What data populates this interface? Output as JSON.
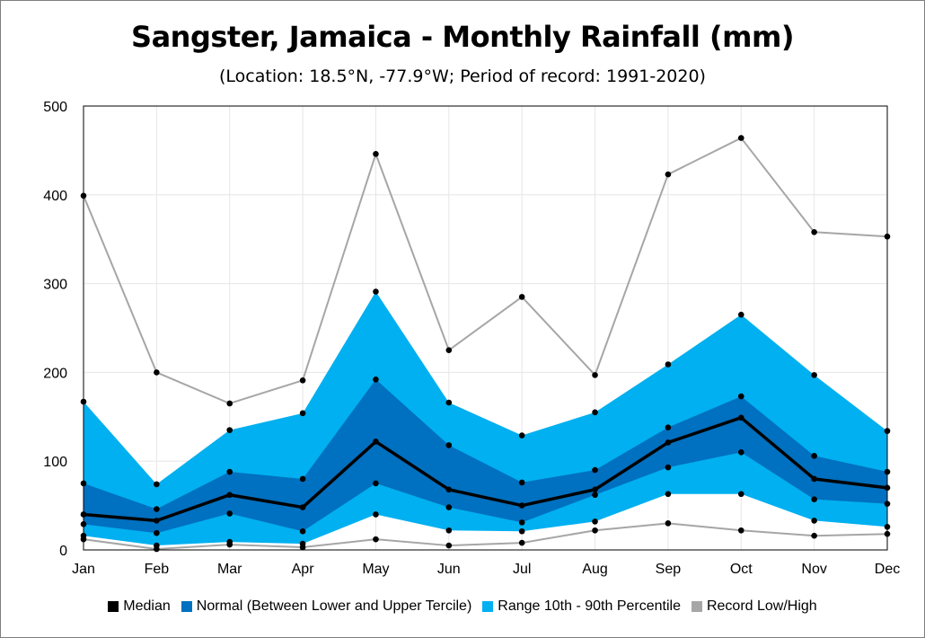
{
  "chart_data": {
    "type": "area",
    "title": "Sangster, Jamaica - Monthly Rainfall (mm)",
    "subtitle": "(Location: 18.5°N, -77.9°W; Period of record: 1991-2020)",
    "categories": [
      "Jan",
      "Feb",
      "Mar",
      "Apr",
      "May",
      "Jun",
      "Jul",
      "Aug",
      "Sep",
      "Oct",
      "Nov",
      "Dec"
    ],
    "ylim": [
      0,
      500
    ],
    "yticks": [
      0,
      100,
      200,
      300,
      400,
      500
    ],
    "grid": true,
    "legend_position": "bottom",
    "series": {
      "p90": [
        167,
        74,
        135,
        154,
        291,
        166,
        129,
        155,
        209,
        265,
        197,
        134
      ],
      "upper_tercile": [
        75,
        46,
        88,
        80,
        192,
        118,
        76,
        90,
        138,
        173,
        106,
        88
      ],
      "median": [
        40,
        33,
        62,
        48,
        122,
        68,
        50,
        68,
        121,
        149,
        80,
        70
      ],
      "lower_tercile": [
        29,
        19,
        41,
        21,
        75,
        48,
        31,
        62,
        93,
        110,
        57,
        52
      ],
      "p10": [
        16,
        5,
        9,
        7,
        40,
        22,
        21,
        32,
        63,
        63,
        33,
        26
      ],
      "record_high": [
        399,
        200,
        165,
        191,
        446,
        225,
        285,
        197,
        423,
        464,
        358,
        353
      ],
      "record_low": [
        12,
        1,
        6,
        3,
        12,
        5,
        8,
        22,
        30,
        22,
        16,
        18
      ]
    },
    "legend": [
      {
        "label": "Median",
        "color": "#000000"
      },
      {
        "label": "Normal (Between Lower and Upper Tercile)",
        "color": "#0070c0"
      },
      {
        "label": "Range 10th - 90th Percentile",
        "color": "#00b0f0"
      },
      {
        "label": "Record Low/High",
        "color": "#a6a6a6"
      }
    ],
    "colors": {
      "median": "#000000",
      "normal": "#0070c0",
      "range": "#00b0f0",
      "record": "#a6a6a6",
      "grid": "#e6e6e6"
    }
  }
}
